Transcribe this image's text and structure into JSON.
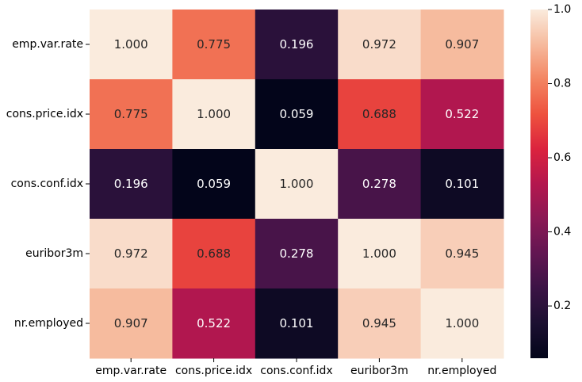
{
  "chart_data": {
    "type": "heatmap",
    "title": "",
    "xlabel": "",
    "ylabel": "",
    "row_labels": [
      "emp.var.rate",
      "cons.price.idx",
      "cons.conf.idx",
      "euribor3m",
      "nr.employed"
    ],
    "col_labels": [
      "emp.var.rate",
      "cons.price.idx",
      "cons.conf.idx",
      "euribor3m",
      "nr.employed"
    ],
    "values": [
      [
        1.0,
        0.775,
        0.196,
        0.972,
        0.907
      ],
      [
        0.775,
        1.0,
        0.059,
        0.688,
        0.522
      ],
      [
        0.196,
        0.059,
        1.0,
        0.278,
        0.101
      ],
      [
        0.972,
        0.688,
        0.278,
        1.0,
        0.945
      ],
      [
        0.907,
        0.522,
        0.101,
        0.945,
        1.0
      ]
    ],
    "value_format": "0.000",
    "colormap": "rocket",
    "vmin": 0.059,
    "vmax": 1.0,
    "colorbar": {
      "ticks": [
        0.2,
        0.4,
        0.6,
        0.8,
        1.0
      ],
      "tick_labels": [
        "0.2",
        "0.4",
        "0.6",
        "0.8",
        "1.0"
      ],
      "placement": "right"
    },
    "colors": {
      "dark_text": "#262626",
      "light_text": "#ffffff"
    }
  }
}
